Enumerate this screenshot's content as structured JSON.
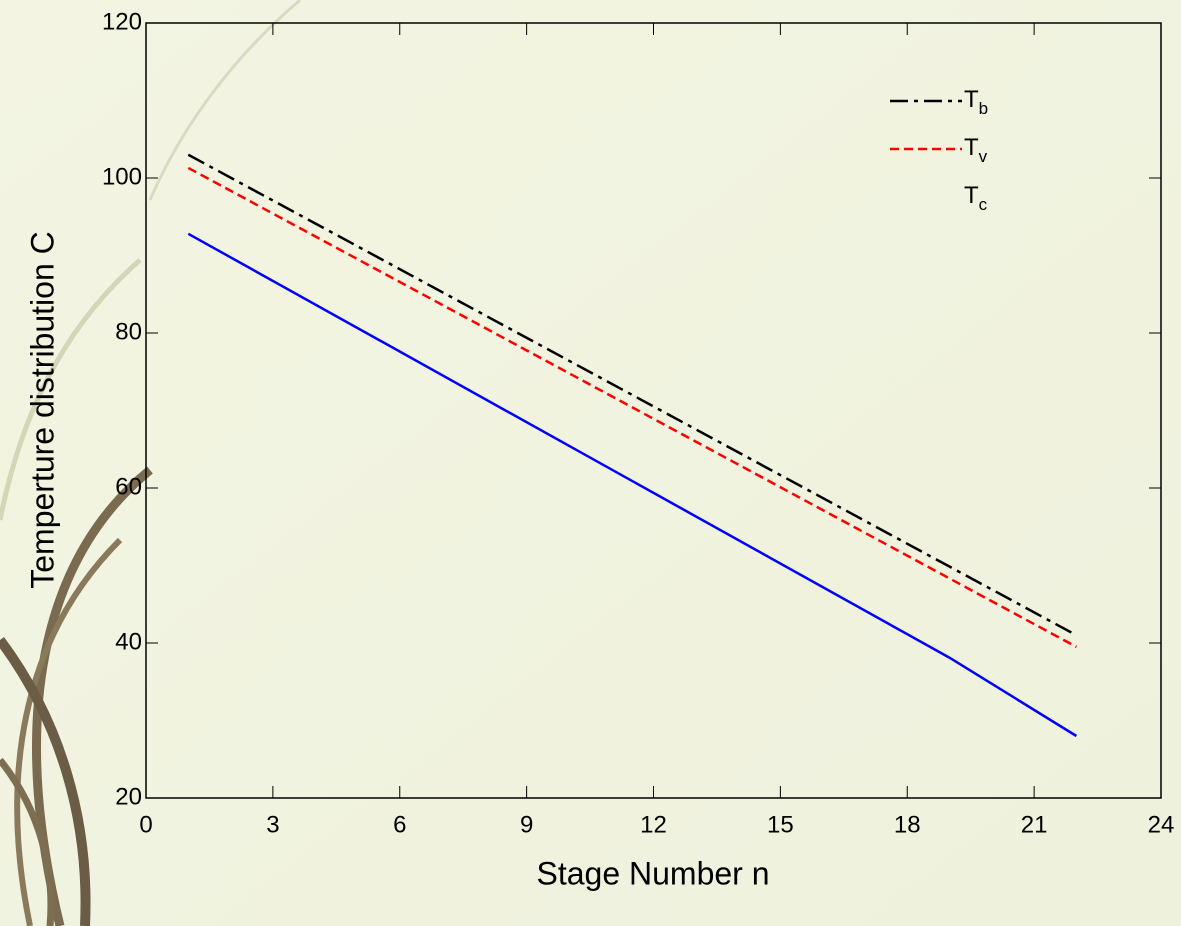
{
  "chart_data": {
    "type": "line",
    "xlabel": "Stage Number n",
    "ylabel": "Temperture distribution C",
    "xlim": [
      0,
      24
    ],
    "xticks": [
      0,
      3,
      6,
      9,
      12,
      15,
      18,
      21,
      24
    ],
    "ylim": [
      20,
      120
    ],
    "yticks": [
      20,
      40,
      60,
      80,
      100,
      120
    ],
    "legend": "upper right",
    "series": [
      {
        "name": "Tb",
        "color": "#000000",
        "dash": "dashdot",
        "x": [
          1,
          22
        ],
        "values": [
          103,
          41
        ]
      },
      {
        "name": "Tv",
        "color": "#ff0000",
        "dash": "dashed",
        "x": [
          1,
          22
        ],
        "values": [
          101.3,
          39.5
        ]
      },
      {
        "name": "Tc",
        "color": "#0000ff",
        "dash": "solid",
        "x": [
          1,
          19,
          22
        ],
        "values": [
          92.8,
          38.1,
          28
        ]
      }
    ]
  }
}
